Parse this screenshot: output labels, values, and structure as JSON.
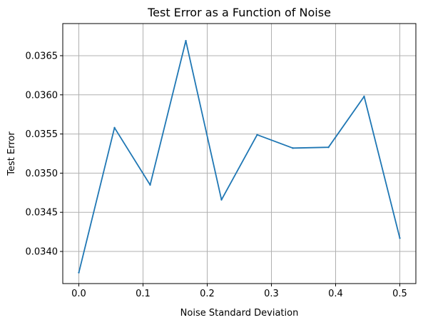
{
  "chart_data": {
    "type": "line",
    "title": "Test Error as a Function of Noise",
    "xlabel": "Noise Standard Deviation",
    "ylabel": "Test Error",
    "x_ticks": [
      "0.0",
      "0.1",
      "0.2",
      "0.3",
      "0.4",
      "0.5"
    ],
    "y_ticks": [
      "0.0340",
      "0.0345",
      "0.0350",
      "0.0355",
      "0.0360",
      "0.0365"
    ],
    "xlim": [
      -0.025,
      0.525
    ],
    "ylim": [
      0.03359,
      0.03691
    ],
    "grid": true,
    "series": [
      {
        "color": "#1f77b4",
        "x": [
          0.0,
          0.0556,
          0.1111,
          0.1667,
          0.2222,
          0.2778,
          0.3333,
          0.3889,
          0.4444,
          0.5
        ],
        "values": [
          0.03373,
          0.03558,
          0.03485,
          0.03669,
          0.03466,
          0.03549,
          0.03532,
          0.03533,
          0.03598,
          0.03417
        ]
      }
    ]
  }
}
